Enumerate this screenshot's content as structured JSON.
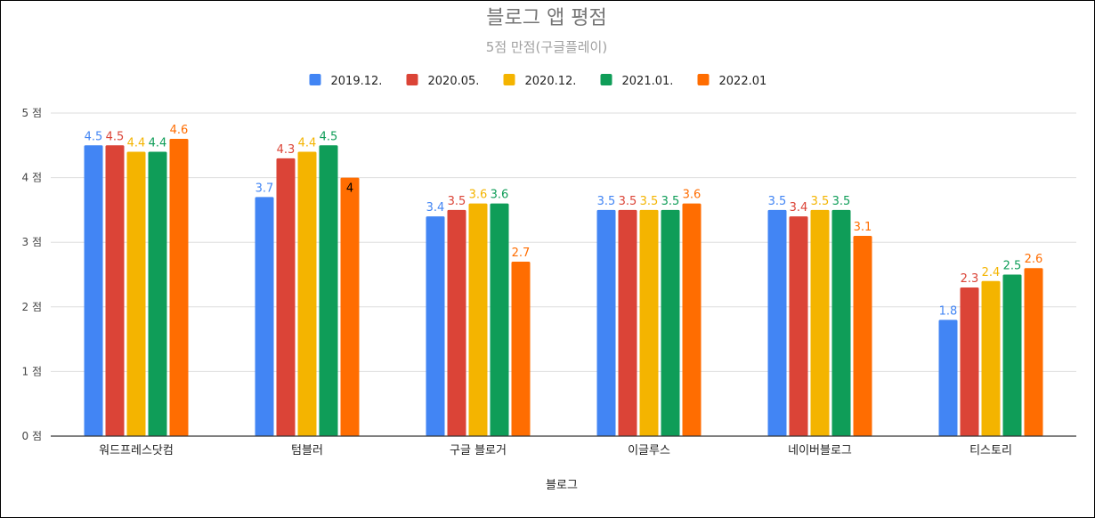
{
  "chart_data": {
    "type": "bar",
    "title": "블로그 앱 평점",
    "subtitle": "5점 만점(구글플레이)",
    "xlabel": "블로그",
    "ylabel": "",
    "ylim": [
      0,
      5
    ],
    "yticks": [
      0,
      1,
      2,
      3,
      4,
      5
    ],
    "ytick_labels": [
      "0 점",
      "1 점",
      "2 점",
      "3 점",
      "4 점",
      "5 점"
    ],
    "grid": true,
    "legend_position": "top",
    "categories": [
      "워드프레스닷컴",
      "텀블러",
      "구글 블로거",
      "이글루스",
      "네이버블로그",
      "티스토리"
    ],
    "series": [
      {
        "name": "2019.12.",
        "color": "#4285F4",
        "values": [
          4.5,
          3.7,
          3.4,
          3.5,
          3.5,
          1.8
        ]
      },
      {
        "name": "2020.05.",
        "color": "#DB4437",
        "values": [
          4.5,
          4.3,
          3.5,
          3.5,
          3.4,
          2.3
        ]
      },
      {
        "name": "2020.12.",
        "color": "#F4B400",
        "values": [
          4.4,
          4.4,
          3.6,
          3.5,
          3.5,
          2.4
        ]
      },
      {
        "name": "2021.01.",
        "color": "#0F9D58",
        "values": [
          4.4,
          4.5,
          3.6,
          3.5,
          3.5,
          2.5
        ]
      },
      {
        "name": "2022.01",
        "color": "#FF6D01",
        "values": [
          4.6,
          4,
          2.7,
          3.6,
          3.1,
          2.6
        ]
      }
    ]
  }
}
